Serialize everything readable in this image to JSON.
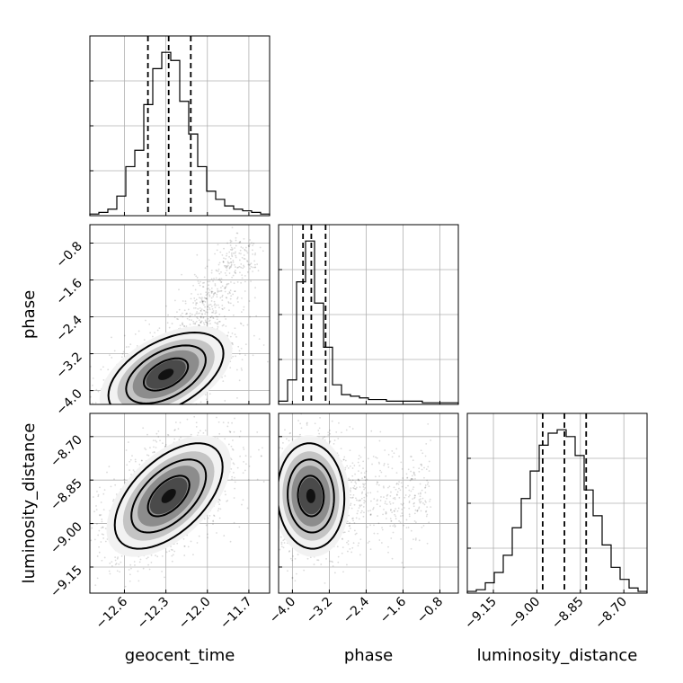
{
  "chart_data": {
    "type": "corner",
    "parameters": [
      "geocent_time",
      "phase",
      "luminosity_distance"
    ],
    "axis_labels": {
      "geocent_time": "geocent_time",
      "phase": "phase",
      "luminosity_distance": "luminosity_distance"
    },
    "ranges": {
      "geocent_time": [
        -12.85,
        -11.55
      ],
      "phase": [
        -4.3,
        -0.4
      ],
      "luminosity_distance": [
        -9.24,
        -8.62
      ]
    },
    "ticks": {
      "geocent_time": [
        "−12.6",
        "−12.3",
        "−12.0",
        "−11.7"
      ],
      "phase": [
        "−4.0",
        "−3.2",
        "−2.4",
        "−1.6",
        "−0.8"
      ],
      "luminosity_distance": [
        "−9.15",
        "−9.00",
        "−8.85",
        "−8.70"
      ]
    },
    "tick_values": {
      "geocent_time": [
        -12.6,
        -12.3,
        -12.0,
        -11.7
      ],
      "phase": [
        -4.0,
        -3.2,
        -2.4,
        -1.6,
        -0.8
      ],
      "luminosity_distance": [
        -9.15,
        -9.0,
        -8.85,
        -8.7
      ]
    },
    "quantiles": {
      "geocent_time": [
        -12.43,
        -12.28,
        -12.12
      ],
      "phase": [
        -3.77,
        -3.59,
        -3.28
      ],
      "luminosity_distance": [
        -8.98,
        -8.905,
        -8.83
      ]
    },
    "histograms": {
      "geocent_time": {
        "edges": [
          -12.85,
          -12.785,
          -12.72,
          -12.655,
          -12.59,
          -12.525,
          -12.46,
          -12.395,
          -12.33,
          -12.265,
          -12.2,
          -12.135,
          -12.07,
          -12.005,
          -11.94,
          -11.875,
          -11.81,
          -11.745,
          -11.68,
          -11.615,
          -11.55
        ],
        "counts": [
          1,
          2,
          4,
          12,
          30,
          40,
          68,
          90,
          100,
          95,
          70,
          50,
          30,
          15,
          10,
          6,
          4,
          3,
          2,
          1
        ]
      },
      "phase": {
        "edges": [
          -4.3,
          -4.105,
          -3.91,
          -3.715,
          -3.52,
          -3.325,
          -3.13,
          -2.935,
          -2.74,
          -2.545,
          -2.35,
          -2.155,
          -1.96,
          -1.765,
          -1.57,
          -1.375,
          -1.18,
          -0.985,
          -0.79,
          -0.595,
          -0.4
        ],
        "counts": [
          2,
          15,
          75,
          100,
          62,
          35,
          12,
          6,
          5,
          4,
          3,
          3,
          2,
          2,
          2,
          2,
          1,
          1,
          1,
          1
        ]
      },
      "luminosity_distance": {
        "edges": [
          -9.24,
          -9.209,
          -9.178,
          -9.147,
          -9.116,
          -9.085,
          -9.054,
          -9.023,
          -8.992,
          -8.961,
          -8.93,
          -8.899,
          -8.868,
          -8.837,
          -8.806,
          -8.775,
          -8.744,
          -8.713,
          -8.682,
          -8.651,
          -8.62
        ],
        "counts": [
          1,
          2,
          6,
          12,
          22,
          38,
          55,
          71,
          86,
          93,
          95,
          91,
          80,
          60,
          45,
          28,
          15,
          8,
          3,
          1
        ]
      }
    },
    "pairs": [
      {
        "x": "geocent_time",
        "y": "phase",
        "center": [
          -12.3,
          -3.65
        ],
        "sigma": [
          0.16,
          0.35
        ],
        "correlation": 0.5,
        "tail": {
          "x_end": -11.75,
          "y_end": -0.9
        },
        "contour_levels": [
          1.0,
          1.8,
          2.6
        ]
      },
      {
        "x": "geocent_time",
        "y": "luminosity_distance",
        "center": [
          -12.28,
          -8.905
        ],
        "sigma": [
          0.15,
          0.07
        ],
        "correlation": 0.55,
        "contour_levels": [
          1.0,
          1.8,
          2.6
        ]
      },
      {
        "x": "phase",
        "y": "luminosity_distance",
        "center": [
          -3.6,
          -8.905
        ],
        "sigma": [
          0.28,
          0.07
        ],
        "correlation": -0.05,
        "tail_x": -1.0,
        "contour_levels": [
          1.0,
          1.8,
          2.6
        ]
      }
    ],
    "grid": true
  }
}
